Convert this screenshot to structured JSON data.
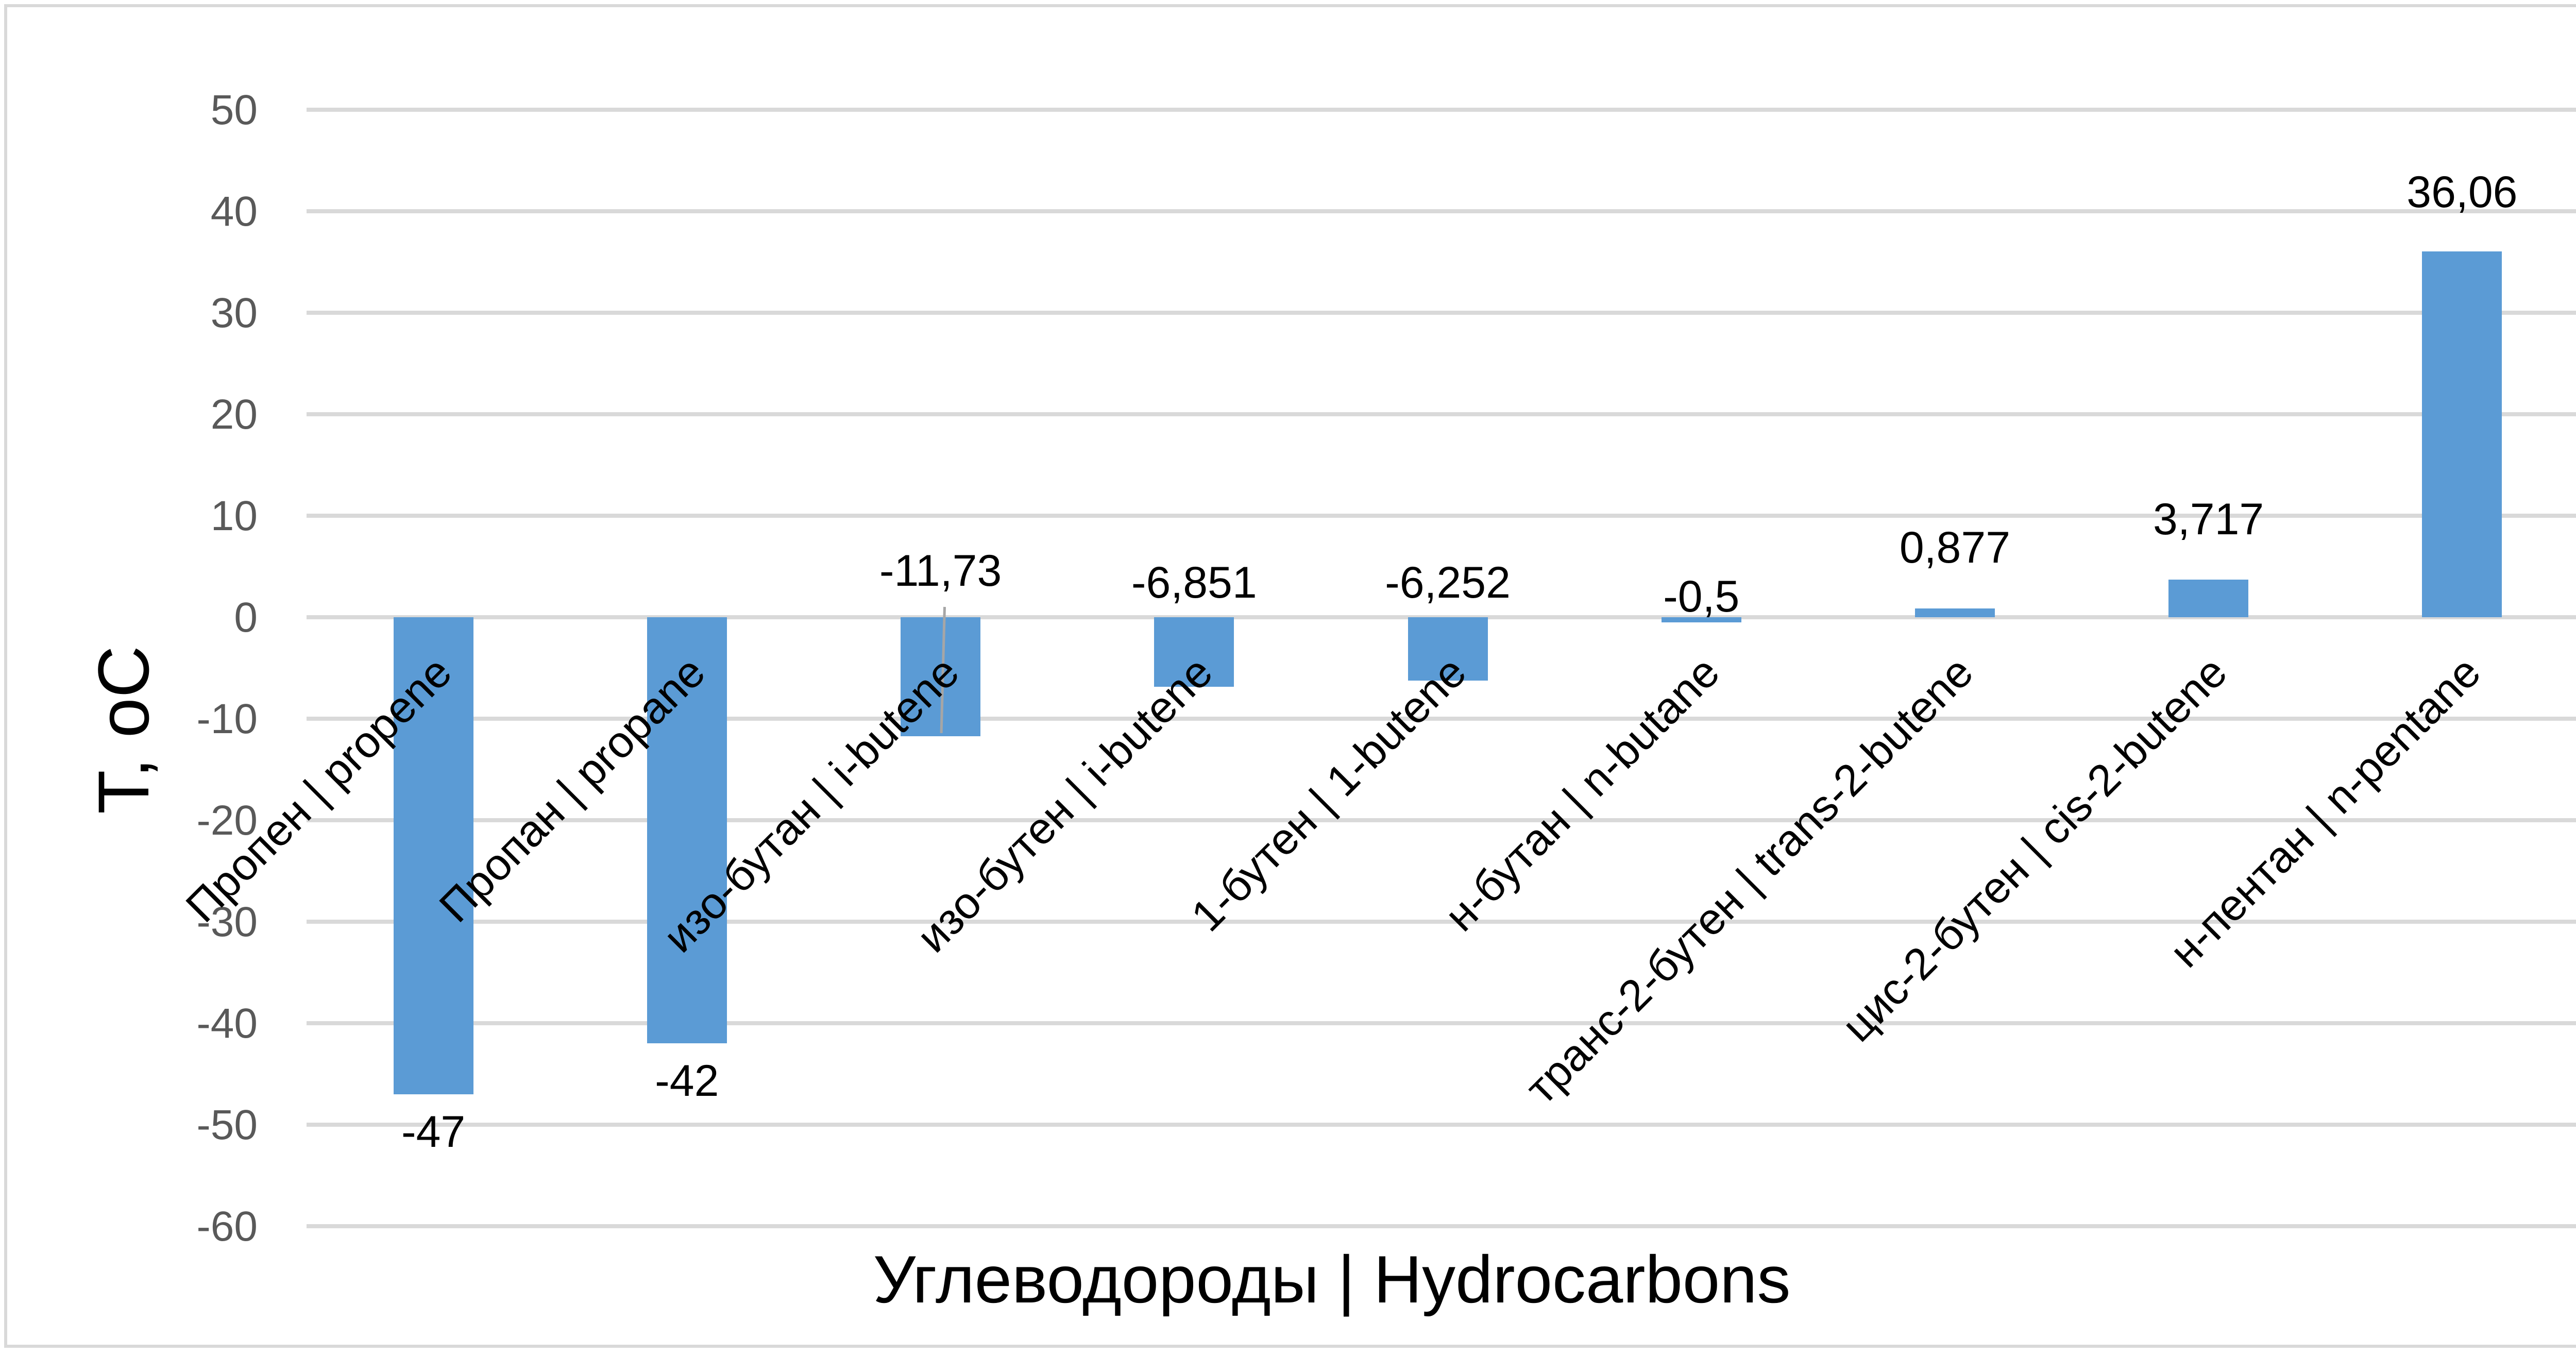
{
  "chart_data": {
    "type": "bar",
    "title": "",
    "xlabel": "Углеводороды | Hydrocarbons",
    "ylabel": "T, oC",
    "ylim": [
      -60,
      50
    ],
    "yticks": [
      "50",
      "40",
      "30",
      "20",
      "10",
      "0",
      "-10",
      "-20",
      "-30",
      "-40",
      "-50",
      "-60"
    ],
    "grid": true,
    "legend": null,
    "bar_color": "#5b9bd5",
    "categories": [
      "Пропен | propene",
      "Пропан | propane",
      "изо-бутан | i-butene",
      "изо-бутен | i-butene",
      "1-бутен | 1-butene",
      "н-бутан | n-butane",
      "транс-2-бутен | trans-2-butene",
      "цис-2-бутен | cis-2-butene",
      "н-пентан | n-pentane"
    ],
    "values": [
      -47,
      -42,
      -11.73,
      -6.851,
      -6.252,
      -0.5,
      0.877,
      3.717,
      36.06
    ],
    "data_labels": [
      "-47",
      "-42",
      "-11,73",
      "-6,851",
      "-6,252",
      "-0,5",
      "0,877",
      "3,717",
      "36,06"
    ]
  }
}
